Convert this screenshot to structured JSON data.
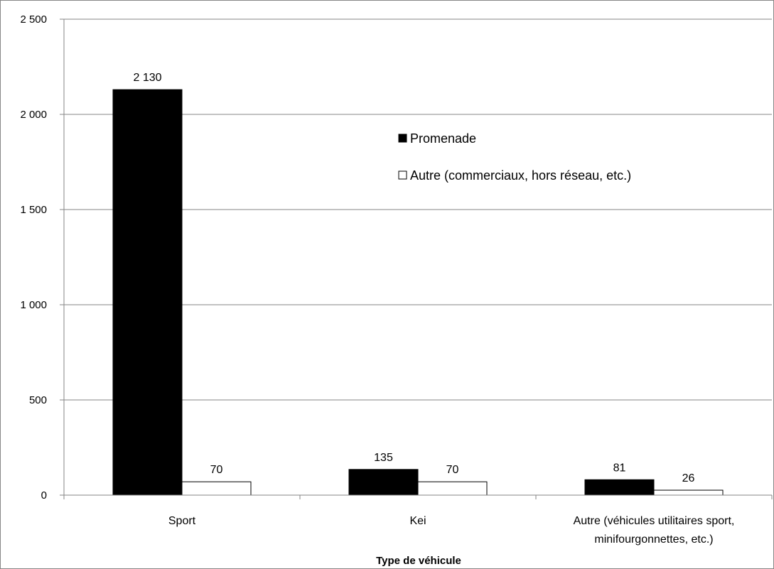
{
  "chart_data": {
    "type": "bar",
    "title": "",
    "xlabel": "Type de véhicule",
    "ylabel": "",
    "ylim": [
      0,
      2500
    ],
    "yticks": [
      0,
      500,
      1000,
      1500,
      2000,
      2500
    ],
    "ytick_labels": [
      "0",
      "500",
      "1 000",
      "1 500",
      "2 000",
      "2 500"
    ],
    "grid": true,
    "legend_position": "upper-center",
    "categories": [
      [
        "Sport"
      ],
      [
        "Kei"
      ],
      [
        "Autre (véhicules utilitaires sport,",
        "minifourgonnettes, etc.)"
      ]
    ],
    "series": [
      {
        "name": "Promenade",
        "color": "#000000",
        "values": [
          2130,
          135,
          81
        ],
        "labels": [
          "2 130",
          "135",
          "81"
        ]
      },
      {
        "name": "Autre (commerciaux, hors réseau, etc.)",
        "color": "#ffffff",
        "values": [
          70,
          70,
          26
        ],
        "labels": [
          "70",
          "70",
          "26"
        ]
      }
    ]
  }
}
